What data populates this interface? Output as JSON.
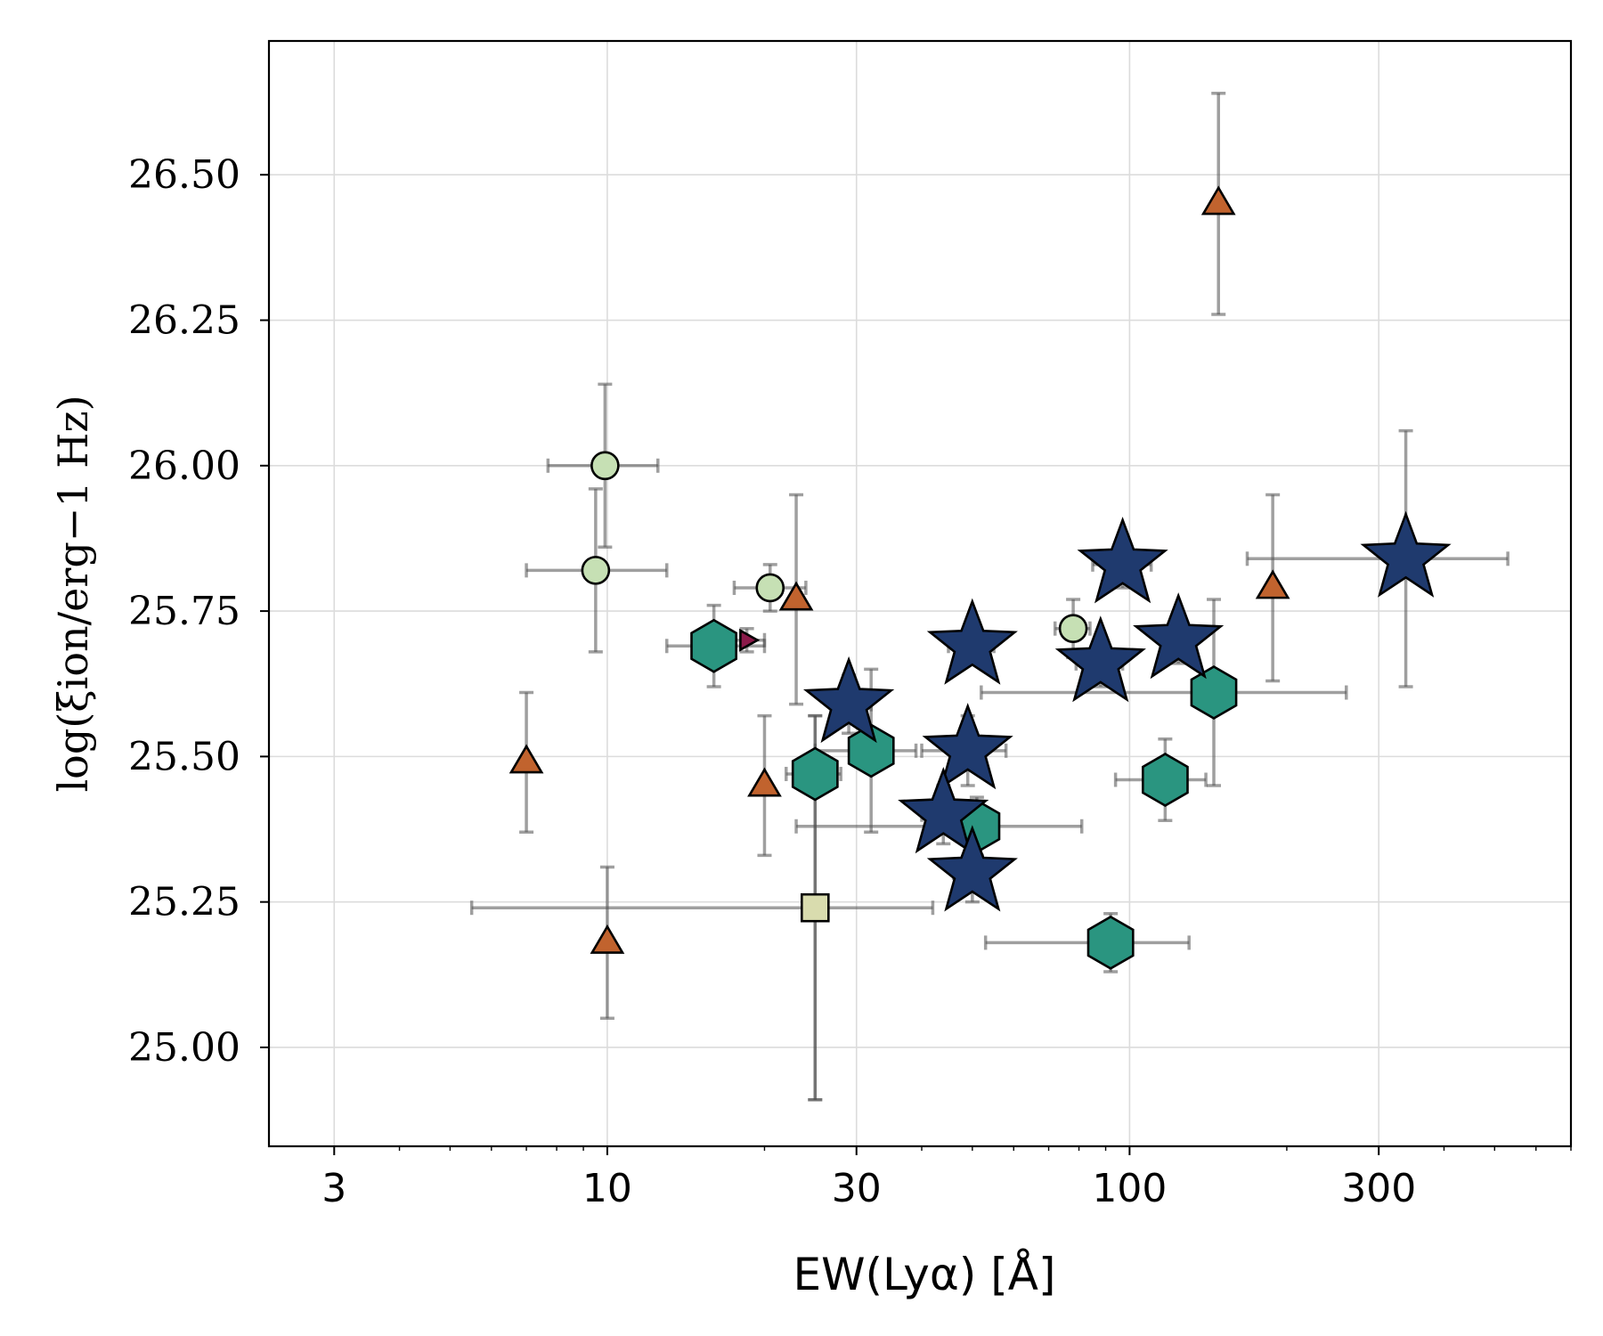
{
  "chart_data": {
    "type": "scatter",
    "xlabel": "EW(Lyα) [Å]",
    "ylabel": "log(ξion/erg−1 Hz)",
    "xscale": "log",
    "xlim": [
      2.25,
      700
    ],
    "ylim": [
      24.83,
      26.73
    ],
    "grid": true,
    "legend": "none",
    "xticks": [
      3,
      10,
      30,
      100,
      300
    ],
    "xtick_labels": [
      "3",
      "10",
      "30",
      "100",
      "300"
    ],
    "yticks": [
      25.0,
      25.25,
      25.5,
      25.75,
      26.0,
      26.25,
      26.5
    ],
    "ytick_labels": [
      "25.00",
      "25.25",
      "25.50",
      "25.75",
      "26.00",
      "26.25",
      "26.50"
    ],
    "series": [
      {
        "marker": "star",
        "color": "#1f3a6e",
        "points": [
          {
            "x": 29,
            "y": 25.59,
            "xerr": [
              2,
              3
            ],
            "yerr": [
              0.05,
              0.05
            ]
          },
          {
            "x": 50,
            "y": 25.69,
            "xerr": [
              5,
              5
            ],
            "yerr": [
              0.03,
              0.03
            ]
          },
          {
            "x": 49,
            "y": 25.51,
            "xerr": [
              9,
              9
            ],
            "yerr": [
              0.06,
              0.06
            ]
          },
          {
            "x": 44,
            "y": 25.4,
            "xerr": [
              4,
              4
            ],
            "yerr": [
              0.05,
              0.05
            ]
          },
          {
            "x": 50,
            "y": 25.3,
            "xerr": [
              4,
              4
            ],
            "yerr": [
              0.05,
              0.05
            ]
          },
          {
            "x": 97,
            "y": 25.83,
            "xerr": [
              12,
              13
            ],
            "yerr": [
              0.04,
              0.04
            ]
          },
          {
            "x": 88,
            "y": 25.66,
            "xerr": [
              9,
              9
            ],
            "yerr": [
              0.04,
              0.04
            ]
          },
          {
            "x": 124,
            "y": 25.7,
            "xerr": [
              9,
              9
            ],
            "yerr": [
              0.04,
              0.04
            ]
          },
          {
            "x": 338,
            "y": 25.84,
            "xerr": [
              170,
              192
            ],
            "yerr": [
              0.22,
              0.22
            ]
          }
        ]
      },
      {
        "marker": "hexagon",
        "color": "#2a9580",
        "points": [
          {
            "x": 16,
            "y": 25.69,
            "xerr": [
              3,
              4
            ],
            "yerr": [
              0.07,
              0.07
            ]
          },
          {
            "x": 25,
            "y": 25.47,
            "xerr": [
              3,
              3
            ],
            "yerr": [
              0.56,
              0.1
            ]
          },
          {
            "x": 32,
            "y": 25.51,
            "xerr": [
              7,
              7
            ],
            "yerr": [
              0.14,
              0.14
            ]
          },
          {
            "x": 51,
            "y": 25.38,
            "xerr": [
              28,
              30
            ],
            "yerr": [
              0.05,
              0.05
            ]
          },
          {
            "x": 92,
            "y": 25.18,
            "xerr": [
              39,
              38
            ],
            "yerr": [
              0.05,
              0.05
            ]
          },
          {
            "x": 117,
            "y": 25.46,
            "xerr": [
              23,
              23
            ],
            "yerr": [
              0.07,
              0.07
            ]
          },
          {
            "x": 145,
            "y": 25.61,
            "xerr": [
              93,
              115
            ],
            "yerr": [
              0.16,
              0.16
            ]
          }
        ]
      },
      {
        "marker": "circle",
        "color": "#c6e0b4",
        "points": [
          {
            "x": 9.9,
            "y": 26.0,
            "xerr": [
              2.2,
              2.6
            ],
            "yerr": [
              0.14,
              0.14
            ]
          },
          {
            "x": 9.5,
            "y": 25.82,
            "xerr": [
              2.5,
              3.5
            ],
            "yerr": [
              0.14,
              0.14
            ]
          },
          {
            "x": 20.5,
            "y": 25.79,
            "xerr": [
              3.0,
              3.5
            ],
            "yerr": [
              0.04,
              0.04
            ]
          },
          {
            "x": 78,
            "y": 25.72,
            "xerr": [
              6,
              6
            ],
            "yerr": [
              0.05,
              0.05
            ]
          }
        ]
      },
      {
        "marker": "triangle",
        "color": "#c1632e",
        "points": [
          {
            "x": 7,
            "y": 25.49,
            "xerr": [
              0,
              0
            ],
            "yerr": [
              0.12,
              0.12
            ]
          },
          {
            "x": 10,
            "y": 25.18,
            "xerr": [
              0,
              0
            ],
            "yerr": [
              0.13,
              0.13
            ]
          },
          {
            "x": 20,
            "y": 25.45,
            "xerr": [
              0,
              0
            ],
            "yerr": [
              0.12,
              0.12
            ]
          },
          {
            "x": 23,
            "y": 25.77,
            "xerr": [
              0,
              0
            ],
            "yerr": [
              0.18,
              0.18
            ]
          },
          {
            "x": 148,
            "y": 26.45,
            "xerr": [
              0,
              0
            ],
            "yerr": [
              0.19,
              0.19
            ]
          },
          {
            "x": 188,
            "y": 25.79,
            "xerr": [
              0,
              0
            ],
            "yerr": [
              0.16,
              0.16
            ]
          }
        ]
      },
      {
        "marker": "square",
        "color": "#d9dcae",
        "points": [
          {
            "x": 25,
            "y": 25.24,
            "xerr": [
              19.5,
              17
            ],
            "yerr": [
              0.33,
              0.33
            ]
          }
        ]
      },
      {
        "marker": "right-triangle",
        "color": "#8b1a4a",
        "points": [
          {
            "x": 18.5,
            "y": 25.7,
            "xerr": [
              1.5,
              1.5
            ],
            "yerr": [
              0.02,
              0.02
            ]
          }
        ]
      }
    ]
  }
}
